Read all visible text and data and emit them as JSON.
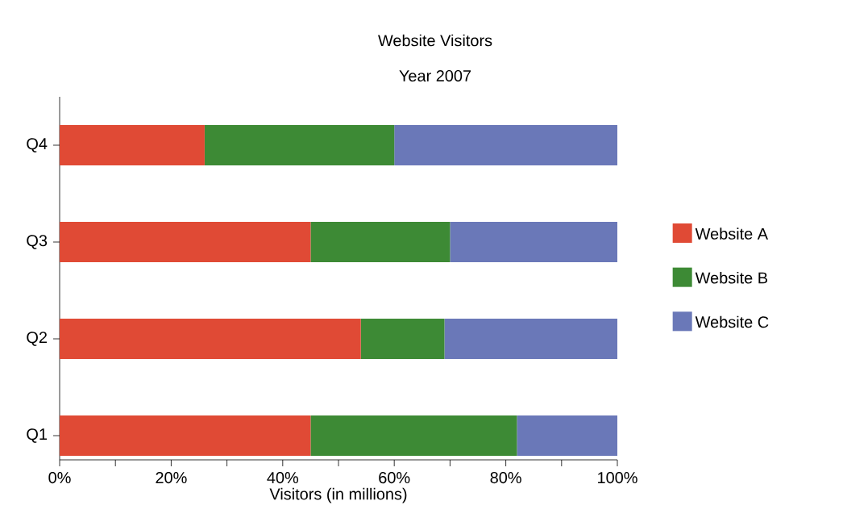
{
  "chart_data": {
    "type": "bar",
    "orientation": "horizontal",
    "stacked": true,
    "title": "Website Visitors",
    "subtitle": "Year 2007",
    "xlabel": "Visitors (in millions)",
    "categories": [
      "Q4",
      "Q3",
      "Q2",
      "Q1"
    ],
    "series": [
      {
        "name": "Website A",
        "color": "#e04a35",
        "values": [
          26,
          45,
          54,
          45
        ]
      },
      {
        "name": "Website B",
        "color": "#3d8a35",
        "values": [
          34,
          25,
          15,
          37
        ]
      },
      {
        "name": "Website C",
        "color": "#6a78b8",
        "values": [
          40,
          30,
          31,
          18
        ]
      }
    ],
    "xlim": [
      0,
      100
    ],
    "xticks": [
      {
        "value": 0,
        "label": "0%"
      },
      {
        "value": 10,
        "label": null
      },
      {
        "value": 20,
        "label": "20%"
      },
      {
        "value": 30,
        "label": null
      },
      {
        "value": 40,
        "label": "40%"
      },
      {
        "value": 50,
        "label": null
      },
      {
        "value": 60,
        "label": "60%"
      },
      {
        "value": 70,
        "label": null
      },
      {
        "value": 80,
        "label": "80%"
      },
      {
        "value": 90,
        "label": null
      },
      {
        "value": 100,
        "label": "100%"
      }
    ],
    "legend": "right"
  }
}
